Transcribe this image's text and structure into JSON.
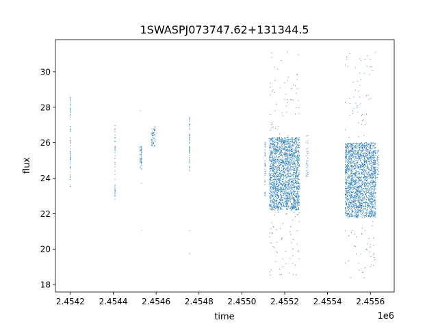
{
  "chart_data": {
    "type": "scatter",
    "title": "1SWASPJ073747.62+131344.5",
    "xlabel": "time",
    "ylabel": "flux",
    "x_offset_label": "1e6",
    "xlim": [
      2454130,
      2455711
    ],
    "ylim": [
      17.58,
      31.81
    ],
    "xticks": [
      2454200,
      2454400,
      2454600,
      2454800,
      2455000,
      2455200,
      2455400,
      2455600
    ],
    "xtick_labels": [
      "2.4542",
      "2.4544",
      "2.4546",
      "2.4548",
      "2.4550",
      "2.4552",
      "2.4554",
      "2.4556"
    ],
    "yticks": [
      18,
      20,
      22,
      24,
      26,
      28,
      30
    ],
    "ytick_labels": [
      "18",
      "20",
      "22",
      "24",
      "26",
      "28",
      "30"
    ],
    "grid": false,
    "marker_color": "#1f77b4",
    "observing_seasons": [
      {
        "time": [
          2454198,
          2454202
        ],
        "flux_core": [
          23.5,
          28.5
        ],
        "flux_range": [
          21.2,
          29.1
        ],
        "n": 60
      },
      {
        "time": [
          2454406,
          2454410
        ],
        "flux_core": [
          22.8,
          27.0
        ],
        "flux_range": [
          22.3,
          27.0
        ],
        "n": 40
      },
      {
        "time": [
          2454526,
          2454532
        ],
        "flux_core": [
          24.5,
          25.8
        ],
        "flux_range": [
          19.2,
          31.1
        ],
        "n": 60
      },
      {
        "time": [
          2454578,
          2454595
        ],
        "flux_core": [
          25.8,
          27.0
        ],
        "flux_range": [
          23.4,
          27.8
        ],
        "n": 50
      },
      {
        "time": [
          2454754,
          2454758
        ],
        "flux_core": [
          24.4,
          27.5
        ],
        "flux_range": [
          18.4,
          27.6
        ],
        "n": 60
      },
      {
        "time": [
          2455106,
          2455110
        ],
        "flux_core": [
          23.0,
          26.2
        ],
        "flux_range": [
          23.0,
          26.2
        ],
        "n": 40
      },
      {
        "time": [
          2455130,
          2455268
        ],
        "flux_core": [
          22.2,
          26.3
        ],
        "flux_range": [
          18.5,
          31.2
        ],
        "n": 2200
      },
      {
        "time": [
          2455302,
          2455308
        ],
        "flux_core": [
          24.0,
          26.5
        ],
        "flux_range": [
          24.0,
          26.5
        ],
        "n": 30
      },
      {
        "time": [
          2455483,
          2455624
        ],
        "flux_core": [
          21.8,
          26.0
        ],
        "flux_range": [
          18.3,
          31.1
        ],
        "n": 2200
      },
      {
        "time": [
          2455632,
          2455638
        ],
        "flux_core": [
          24.0,
          25.6
        ],
        "flux_range": [
          24.0,
          25.6
        ],
        "n": 30
      }
    ]
  }
}
